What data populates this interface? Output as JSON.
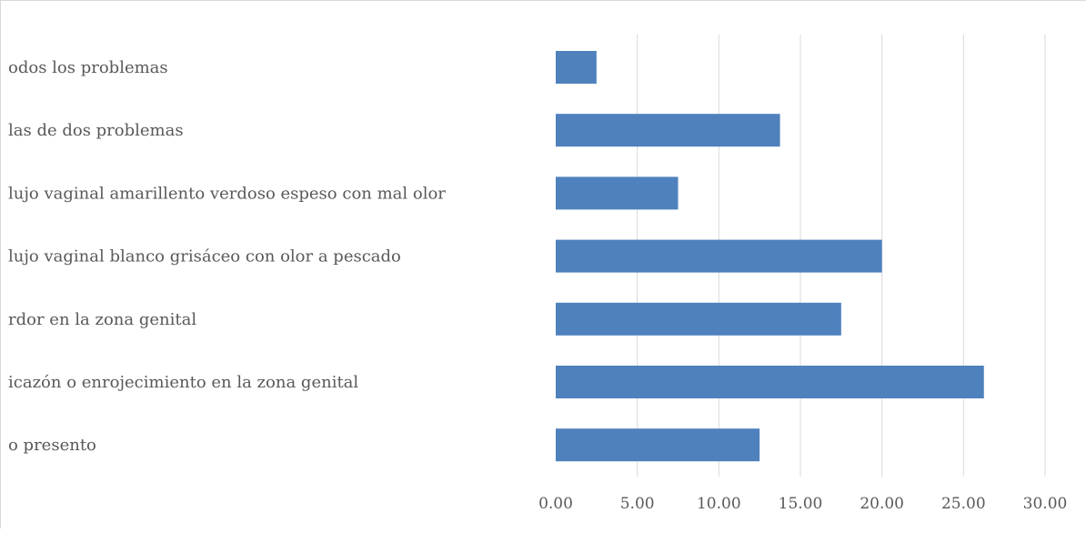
{
  "chart_data": {
    "type": "bar",
    "orientation": "horizontal",
    "title": "",
    "xlabel": "",
    "ylabel": "",
    "categories": [
      "odos los problemas",
      "las de dos problemas",
      "lujo vaginal amarillento verdoso espeso con mal olor",
      "lujo vaginal blanco grisáceo con olor a pescado",
      "rdor en la zona genital",
      "icazón o enrojecimiento en la zona genital",
      "o presento"
    ],
    "values": [
      2.5,
      13.75,
      7.5,
      20.0,
      17.5,
      26.25,
      12.5
    ],
    "xlim": [
      0,
      30
    ],
    "ticks": [
      "0.00",
      "5.00",
      "10.00",
      "15.00",
      "20.00",
      "25.00",
      "30.00"
    ],
    "tick_values": [
      0,
      5,
      10,
      15,
      20,
      25,
      30
    ],
    "grid": true,
    "legend": "none",
    "colors": {
      "bar": "#4f81bd",
      "grid": "#d9d9d9",
      "text": "#595959"
    }
  }
}
